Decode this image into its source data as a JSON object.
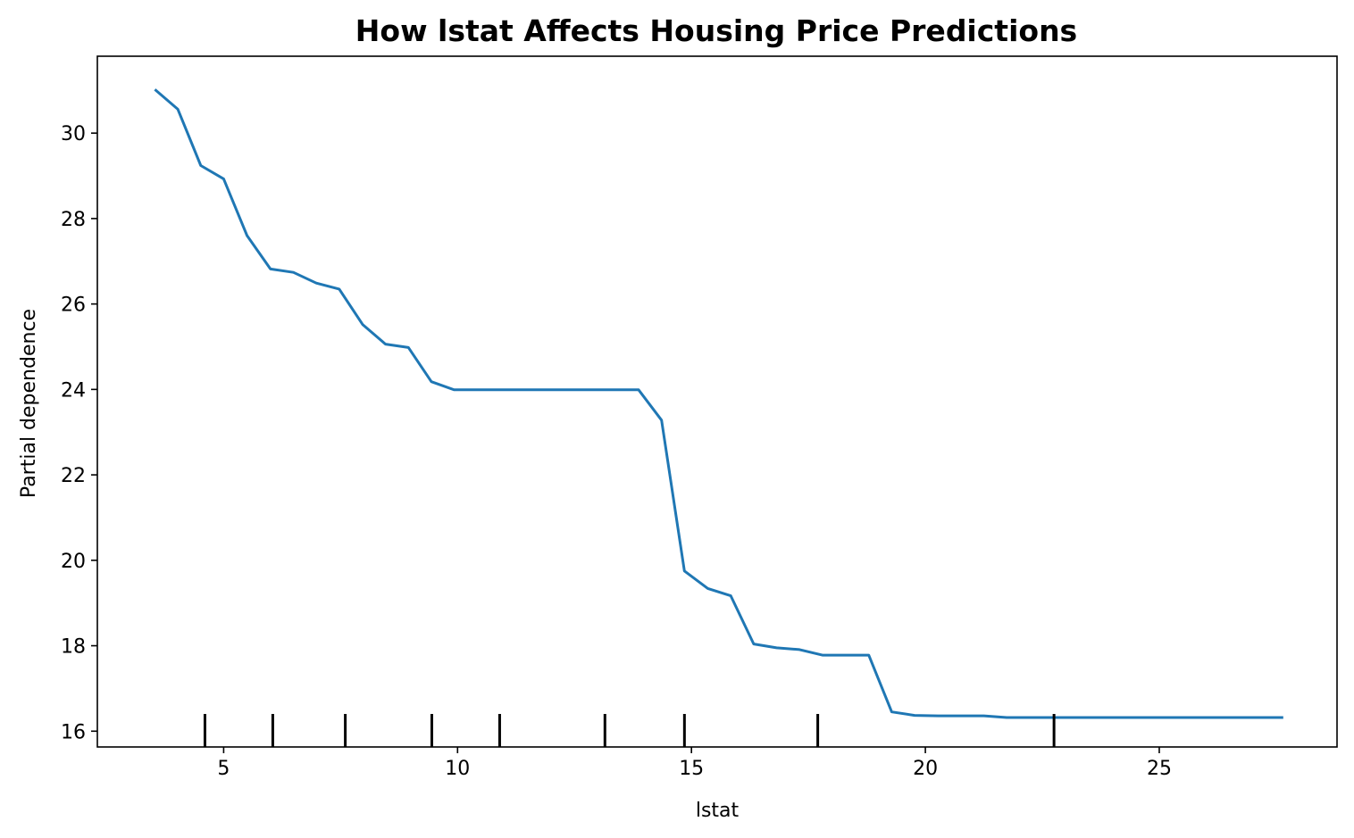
{
  "chart_data": {
    "type": "line",
    "title": "How lstat Affects Housing Price Predictions",
    "xlabel": "lstat",
    "ylabel": "Partial dependence",
    "xlim": [
      2.3,
      28.8
    ],
    "ylim": [
      15.63,
      31.8
    ],
    "x_ticks": [
      5,
      10,
      15,
      20,
      25
    ],
    "y_ticks": [
      16,
      18,
      20,
      22,
      24,
      26,
      28,
      30
    ],
    "grid": false,
    "legend": "none",
    "series": [
      {
        "color": "#1f77b4",
        "x": [
          3.53,
          4.02,
          4.51,
          5.0,
          5.5,
          6.0,
          6.49,
          6.98,
          7.47,
          7.97,
          8.46,
          8.95,
          9.44,
          9.93,
          10.42,
          10.92,
          11.41,
          11.9,
          12.39,
          12.88,
          13.38,
          13.87,
          14.36,
          14.85,
          15.35,
          15.84,
          16.33,
          16.82,
          17.31,
          17.8,
          18.3,
          18.79,
          19.28,
          19.77,
          20.27,
          20.76,
          21.25,
          21.74,
          22.23,
          22.73,
          23.22,
          23.71,
          24.2,
          24.69,
          25.19,
          25.68,
          26.17,
          26.66,
          27.16,
          27.65
        ],
        "y": [
          31.02,
          30.56,
          29.24,
          28.93,
          27.6,
          26.82,
          26.74,
          26.49,
          26.35,
          25.52,
          25.06,
          24.98,
          24.18,
          23.99,
          23.99,
          23.99,
          23.99,
          23.99,
          23.99,
          23.99,
          23.99,
          23.99,
          23.28,
          19.75,
          19.34,
          19.17,
          18.04,
          17.95,
          17.91,
          17.78,
          17.78,
          17.78,
          16.45,
          16.37,
          16.36,
          16.36,
          16.36,
          16.32,
          16.32,
          16.32,
          16.32,
          16.32,
          16.32,
          16.32,
          16.32,
          16.32,
          16.32,
          16.32,
          16.32,
          16.32
        ]
      }
    ],
    "rug_x": [
      4.6,
      6.05,
      7.6,
      9.45,
      10.9,
      13.15,
      14.85,
      17.7,
      22.75
    ]
  }
}
